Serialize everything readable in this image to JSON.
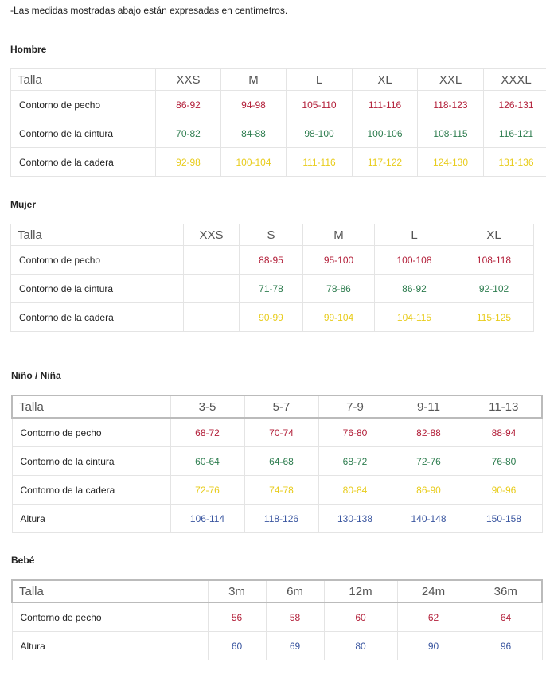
{
  "intro": "-Las medidas mostradas abajo están expresadas en centímetros.",
  "sections": [
    {
      "title": "Hombre",
      "header": [
        "Talla",
        "XXS",
        "M",
        "L",
        "XL",
        "XXL",
        "XXXL"
      ],
      "rows": [
        {
          "color": "#b3203a",
          "cells": [
            "Contorno de pecho",
            "86-92",
            "94-98",
            "105-110",
            "111-116",
            "118-123",
            "126-131"
          ]
        },
        {
          "color": "#2e7d4f",
          "cells": [
            "Contorno de la cintura",
            "70-82",
            "84-88",
            "98-100",
            "100-106",
            "108-115",
            "116-121"
          ]
        },
        {
          "color": "#e8cc1c",
          "cells": [
            "Contorno de la cadera",
            "92-98",
            "100-104",
            "111-116",
            "117-122",
            "124-130",
            "131-136"
          ]
        }
      ]
    },
    {
      "title": "Mujer",
      "header": [
        "Talla",
        "XXS",
        "S",
        "M",
        "L",
        "XL"
      ],
      "rows": [
        {
          "color": "#b3203a",
          "cells": [
            "Contorno de pecho",
            null,
            "88-95",
            "95-100",
            "100-108",
            "108-118"
          ]
        },
        {
          "color": "#2e7d4f",
          "cells": [
            "Contorno de la cintura",
            null,
            "71-78",
            "78-86",
            "86-92",
            "92-102"
          ]
        },
        {
          "color": "#e8cc1c",
          "cells": [
            "Contorno de la cadera",
            null,
            "90-99",
            "99-104",
            "104-115",
            "115-125"
          ]
        }
      ]
    },
    {
      "title": "Niño / Niña",
      "header": [
        "Talla",
        "3-5",
        "5-7",
        "7-9",
        "9-11",
        "11-13"
      ],
      "rows": [
        {
          "color": "#b3203a",
          "cells": [
            "Contorno de pecho",
            "68-72",
            "70-74",
            "76-80",
            "82-88",
            "88-94"
          ]
        },
        {
          "color": "#2e7d4f",
          "cells": [
            "Contorno de la cintura",
            "60-64",
            "64-68",
            "68-72",
            "72-76",
            "76-80"
          ]
        },
        {
          "color": "#e8cc1c",
          "cells": [
            "Contorno de la cadera",
            "72-76",
            "74-78",
            "80-84",
            "86-90",
            "90-96"
          ]
        },
        {
          "color": "#3a56a0",
          "cells": [
            "Altura",
            "106-114",
            "118-126",
            "130-138",
            "140-148",
            "150-158"
          ]
        }
      ]
    },
    {
      "title": "Bebé",
      "header": [
        "Talla",
        "3m",
        "6m",
        "12m",
        "24m",
        "36m"
      ],
      "rows": [
        {
          "color": "#b3203a",
          "cells": [
            "Contorno de pecho",
            "56",
            "58",
            "60",
            "62",
            "64"
          ]
        },
        {
          "color": "#3a56a0",
          "cells": [
            "Altura",
            "60",
            "69",
            "80",
            "90",
            "96"
          ]
        }
      ]
    }
  ]
}
